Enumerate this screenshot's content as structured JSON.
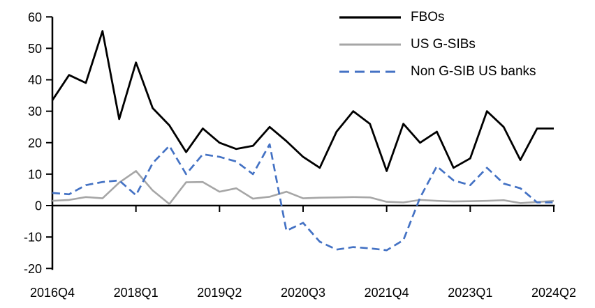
{
  "chart_data": {
    "type": "line",
    "title": "",
    "xlabel": "",
    "ylabel": "",
    "grid": false,
    "legend_position": "top-right",
    "ylim": [
      -20,
      60
    ],
    "y_ticks": [
      60,
      50,
      40,
      30,
      20,
      10,
      0,
      -10,
      -20
    ],
    "x_tick_labels": [
      "2016Q4",
      "2018Q1",
      "2019Q2",
      "2020Q3",
      "2021Q4",
      "2023Q1",
      "2024Q2"
    ],
    "x_tick_indices": [
      0,
      5,
      10,
      15,
      20,
      25,
      30
    ],
    "axis_color": "#000000",
    "categories": [
      "2016Q4",
      "2017Q1",
      "2017Q2",
      "2017Q3",
      "2017Q4",
      "2018Q1",
      "2018Q2",
      "2018Q3",
      "2018Q4",
      "2019Q1",
      "2019Q2",
      "2019Q3",
      "2019Q4",
      "2020Q1",
      "2020Q2",
      "2020Q3",
      "2020Q4",
      "2021Q1",
      "2021Q2",
      "2021Q3",
      "2021Q4",
      "2022Q1",
      "2022Q2",
      "2022Q3",
      "2022Q4",
      "2023Q1",
      "2023Q2",
      "2023Q3",
      "2023Q4",
      "2024Q1",
      "2024Q2"
    ],
    "series": [
      {
        "name": "FBOs",
        "color": "#000000",
        "style": "solid",
        "dash": null,
        "width": 2.8,
        "values": [
          33.5,
          41.5,
          39,
          55.5,
          27.5,
          45.5,
          31,
          25.5,
          17,
          24.5,
          20,
          18,
          19,
          25,
          20.5,
          15.5,
          12,
          23.5,
          30,
          26,
          11,
          26,
          20,
          23.5,
          12,
          15,
          30,
          25,
          14.5,
          24.5,
          24.5
        ]
      },
      {
        "name": "US G-SIBs",
        "color": "#a6a6a6",
        "style": "solid",
        "dash": null,
        "width": 2.6,
        "values": [
          1.5,
          1.8,
          2.7,
          2.3,
          7.3,
          11,
          4.8,
          0.5,
          7.4,
          7.5,
          4.4,
          5.5,
          2.2,
          2.8,
          4.4,
          2.3,
          2.5,
          2.6,
          2.7,
          2.6,
          1.2,
          1.0,
          1.8,
          1.5,
          1.3,
          1.4,
          1.5,
          1.7,
          0.8,
          1.1,
          1.5
        ]
      },
      {
        "name": "Non G-SIB US banks",
        "color": "#4472c4",
        "style": "dashed",
        "dash": "11,6",
        "width": 2.7,
        "values": [
          4,
          3.6,
          6.5,
          7.5,
          8,
          3.3,
          13.5,
          19,
          10,
          16.3,
          15.5,
          14,
          10,
          19.5,
          -8,
          -5.5,
          -11.5,
          -14,
          -13.2,
          -13.6,
          -14.2,
          -11,
          2.5,
          12.5,
          8,
          6.5,
          12,
          7,
          5.5,
          1,
          1
        ]
      }
    ]
  }
}
